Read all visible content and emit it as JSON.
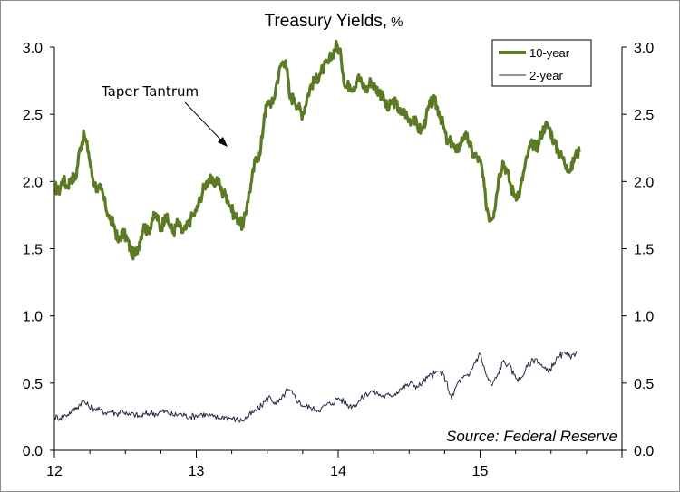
{
  "chart_data": {
    "type": "line",
    "title": "Treasury Yields,",
    "title_unit": "%",
    "xlabel": "",
    "ylabel": "",
    "ylim": [
      0.0,
      3.0
    ],
    "xlim": [
      2012.0,
      2016.0
    ],
    "y_ticks": [
      "0.0",
      "0.5",
      "1.0",
      "1.5",
      "2.0",
      "2.5",
      "3.0"
    ],
    "x_ticks": [
      {
        "value": 2012,
        "label": "12"
      },
      {
        "value": 2013,
        "label": "13"
      },
      {
        "value": 2014,
        "label": "14"
      },
      {
        "value": 2015,
        "label": "15"
      }
    ],
    "grid": false,
    "legend_position": "top-right",
    "annotation": "Taper Tantrum",
    "source": "Source: Federal Reserve",
    "series": [
      {
        "name": "10-year",
        "color": "#5a7a24",
        "points": [
          [
            2012.0,
            1.97
          ],
          [
            2012.03,
            1.92
          ],
          [
            2012.06,
            2.02
          ],
          [
            2012.09,
            1.96
          ],
          [
            2012.12,
            2.03
          ],
          [
            2012.15,
            2.02
          ],
          [
            2012.18,
            2.25
          ],
          [
            2012.21,
            2.35
          ],
          [
            2012.24,
            2.22
          ],
          [
            2012.27,
            2.02
          ],
          [
            2012.3,
            1.95
          ],
          [
            2012.33,
            1.94
          ],
          [
            2012.36,
            1.82
          ],
          [
            2012.39,
            1.72
          ],
          [
            2012.42,
            1.68
          ],
          [
            2012.45,
            1.55
          ],
          [
            2012.48,
            1.62
          ],
          [
            2012.51,
            1.58
          ],
          [
            2012.54,
            1.48
          ],
          [
            2012.57,
            1.45
          ],
          [
            2012.6,
            1.55
          ],
          [
            2012.63,
            1.68
          ],
          [
            2012.66,
            1.62
          ],
          [
            2012.69,
            1.72
          ],
          [
            2012.72,
            1.75
          ],
          [
            2012.75,
            1.64
          ],
          [
            2012.78,
            1.75
          ],
          [
            2012.81,
            1.68
          ],
          [
            2012.84,
            1.62
          ],
          [
            2012.87,
            1.7
          ],
          [
            2012.9,
            1.62
          ],
          [
            2012.93,
            1.65
          ],
          [
            2012.96,
            1.72
          ],
          [
            2013.0,
            1.78
          ],
          [
            2013.03,
            1.88
          ],
          [
            2013.06,
            1.97
          ],
          [
            2013.09,
            2.02
          ],
          [
            2013.12,
            1.98
          ],
          [
            2013.15,
            2.02
          ],
          [
            2013.18,
            1.92
          ],
          [
            2013.21,
            1.9
          ],
          [
            2013.24,
            1.82
          ],
          [
            2013.27,
            1.74
          ],
          [
            2013.3,
            1.72
          ],
          [
            2013.33,
            1.66
          ],
          [
            2013.36,
            1.85
          ],
          [
            2013.39,
            2.0
          ],
          [
            2013.42,
            2.18
          ],
          [
            2013.45,
            2.2
          ],
          [
            2013.48,
            2.5
          ],
          [
            2013.51,
            2.6
          ],
          [
            2013.54,
            2.58
          ],
          [
            2013.57,
            2.75
          ],
          [
            2013.6,
            2.88
          ],
          [
            2013.63,
            2.9
          ],
          [
            2013.66,
            2.62
          ],
          [
            2013.69,
            2.62
          ],
          [
            2013.72,
            2.55
          ],
          [
            2013.75,
            2.5
          ],
          [
            2013.78,
            2.62
          ],
          [
            2013.81,
            2.72
          ],
          [
            2013.84,
            2.75
          ],
          [
            2013.87,
            2.8
          ],
          [
            2013.9,
            2.85
          ],
          [
            2013.93,
            2.88
          ],
          [
            2013.96,
            2.95
          ],
          [
            2013.99,
            3.02
          ],
          [
            2014.02,
            2.93
          ],
          [
            2014.05,
            2.7
          ],
          [
            2014.08,
            2.72
          ],
          [
            2014.11,
            2.7
          ],
          [
            2014.14,
            2.78
          ],
          [
            2014.17,
            2.72
          ],
          [
            2014.2,
            2.68
          ],
          [
            2014.23,
            2.75
          ],
          [
            2014.26,
            2.7
          ],
          [
            2014.29,
            2.67
          ],
          [
            2014.32,
            2.62
          ],
          [
            2014.35,
            2.53
          ],
          [
            2014.38,
            2.6
          ],
          [
            2014.41,
            2.58
          ],
          [
            2014.44,
            2.5
          ],
          [
            2014.47,
            2.52
          ],
          [
            2014.5,
            2.45
          ],
          [
            2014.53,
            2.48
          ],
          [
            2014.56,
            2.4
          ],
          [
            2014.59,
            2.38
          ],
          [
            2014.62,
            2.48
          ],
          [
            2014.65,
            2.58
          ],
          [
            2014.68,
            2.6
          ],
          [
            2014.71,
            2.52
          ],
          [
            2014.74,
            2.42
          ],
          [
            2014.77,
            2.28
          ],
          [
            2014.8,
            2.3
          ],
          [
            2014.83,
            2.22
          ],
          [
            2014.86,
            2.28
          ],
          [
            2014.89,
            2.35
          ],
          [
            2014.92,
            2.3
          ],
          [
            2014.95,
            2.2
          ],
          [
            2014.98,
            2.18
          ],
          [
            2015.01,
            2.12
          ],
          [
            2015.04,
            1.85
          ],
          [
            2015.07,
            1.72
          ],
          [
            2015.1,
            1.78
          ],
          [
            2015.13,
            2.02
          ],
          [
            2015.16,
            2.15
          ],
          [
            2015.19,
            2.08
          ],
          [
            2015.22,
            1.95
          ],
          [
            2015.25,
            1.9
          ],
          [
            2015.28,
            1.92
          ],
          [
            2015.31,
            2.08
          ],
          [
            2015.34,
            2.22
          ],
          [
            2015.37,
            2.28
          ],
          [
            2015.4,
            2.25
          ],
          [
            2015.43,
            2.35
          ],
          [
            2015.46,
            2.42
          ],
          [
            2015.49,
            2.4
          ],
          [
            2015.52,
            2.3
          ],
          [
            2015.55,
            2.22
          ],
          [
            2015.58,
            2.18
          ],
          [
            2015.61,
            2.12
          ],
          [
            2015.64,
            2.08
          ],
          [
            2015.67,
            2.2
          ],
          [
            2015.7,
            2.22
          ]
        ]
      },
      {
        "name": "2-year",
        "color": "#1f2a44",
        "points": [
          [
            2012.0,
            0.25
          ],
          [
            2012.04,
            0.24
          ],
          [
            2012.08,
            0.26
          ],
          [
            2012.12,
            0.29
          ],
          [
            2012.16,
            0.32
          ],
          [
            2012.2,
            0.37
          ],
          [
            2012.24,
            0.33
          ],
          [
            2012.28,
            0.31
          ],
          [
            2012.32,
            0.3
          ],
          [
            2012.36,
            0.28
          ],
          [
            2012.4,
            0.29
          ],
          [
            2012.44,
            0.27
          ],
          [
            2012.48,
            0.3
          ],
          [
            2012.52,
            0.26
          ],
          [
            2012.56,
            0.27
          ],
          [
            2012.6,
            0.25
          ],
          [
            2012.64,
            0.27
          ],
          [
            2012.68,
            0.28
          ],
          [
            2012.72,
            0.27
          ],
          [
            2012.76,
            0.29
          ],
          [
            2012.8,
            0.28
          ],
          [
            2012.84,
            0.26
          ],
          [
            2012.88,
            0.27
          ],
          [
            2012.92,
            0.26
          ],
          [
            2012.96,
            0.25
          ],
          [
            2013.0,
            0.26
          ],
          [
            2013.04,
            0.27
          ],
          [
            2013.08,
            0.26
          ],
          [
            2013.12,
            0.25
          ],
          [
            2013.16,
            0.24
          ],
          [
            2013.2,
            0.25
          ],
          [
            2013.24,
            0.24
          ],
          [
            2013.28,
            0.23
          ],
          [
            2013.32,
            0.22
          ],
          [
            2013.36,
            0.25
          ],
          [
            2013.4,
            0.28
          ],
          [
            2013.44,
            0.31
          ],
          [
            2013.48,
            0.36
          ],
          [
            2013.52,
            0.4
          ],
          [
            2013.56,
            0.34
          ],
          [
            2013.6,
            0.38
          ],
          [
            2013.64,
            0.45
          ],
          [
            2013.68,
            0.42
          ],
          [
            2013.72,
            0.36
          ],
          [
            2013.76,
            0.33
          ],
          [
            2013.8,
            0.32
          ],
          [
            2013.84,
            0.3
          ],
          [
            2013.88,
            0.31
          ],
          [
            2013.92,
            0.34
          ],
          [
            2013.96,
            0.35
          ],
          [
            2014.0,
            0.39
          ],
          [
            2014.04,
            0.36
          ],
          [
            2014.08,
            0.33
          ],
          [
            2014.12,
            0.34
          ],
          [
            2014.16,
            0.38
          ],
          [
            2014.2,
            0.42
          ],
          [
            2014.24,
            0.44
          ],
          [
            2014.28,
            0.42
          ],
          [
            2014.32,
            0.4
          ],
          [
            2014.36,
            0.41
          ],
          [
            2014.4,
            0.42
          ],
          [
            2014.44,
            0.46
          ],
          [
            2014.48,
            0.48
          ],
          [
            2014.52,
            0.5
          ],
          [
            2014.56,
            0.47
          ],
          [
            2014.6,
            0.51
          ],
          [
            2014.64,
            0.55
          ],
          [
            2014.68,
            0.57
          ],
          [
            2014.72,
            0.59
          ],
          [
            2014.76,
            0.52
          ],
          [
            2014.8,
            0.38
          ],
          [
            2014.84,
            0.5
          ],
          [
            2014.88,
            0.54
          ],
          [
            2014.92,
            0.55
          ],
          [
            2014.96,
            0.65
          ],
          [
            2015.0,
            0.72
          ],
          [
            2015.04,
            0.57
          ],
          [
            2015.08,
            0.48
          ],
          [
            2015.12,
            0.55
          ],
          [
            2015.16,
            0.66
          ],
          [
            2015.2,
            0.64
          ],
          [
            2015.24,
            0.56
          ],
          [
            2015.28,
            0.52
          ],
          [
            2015.32,
            0.6
          ],
          [
            2015.36,
            0.66
          ],
          [
            2015.4,
            0.68
          ],
          [
            2015.44,
            0.62
          ],
          [
            2015.48,
            0.58
          ],
          [
            2015.52,
            0.65
          ],
          [
            2015.56,
            0.7
          ],
          [
            2015.6,
            0.72
          ],
          [
            2015.64,
            0.68
          ],
          [
            2015.68,
            0.74
          ]
        ]
      }
    ]
  }
}
